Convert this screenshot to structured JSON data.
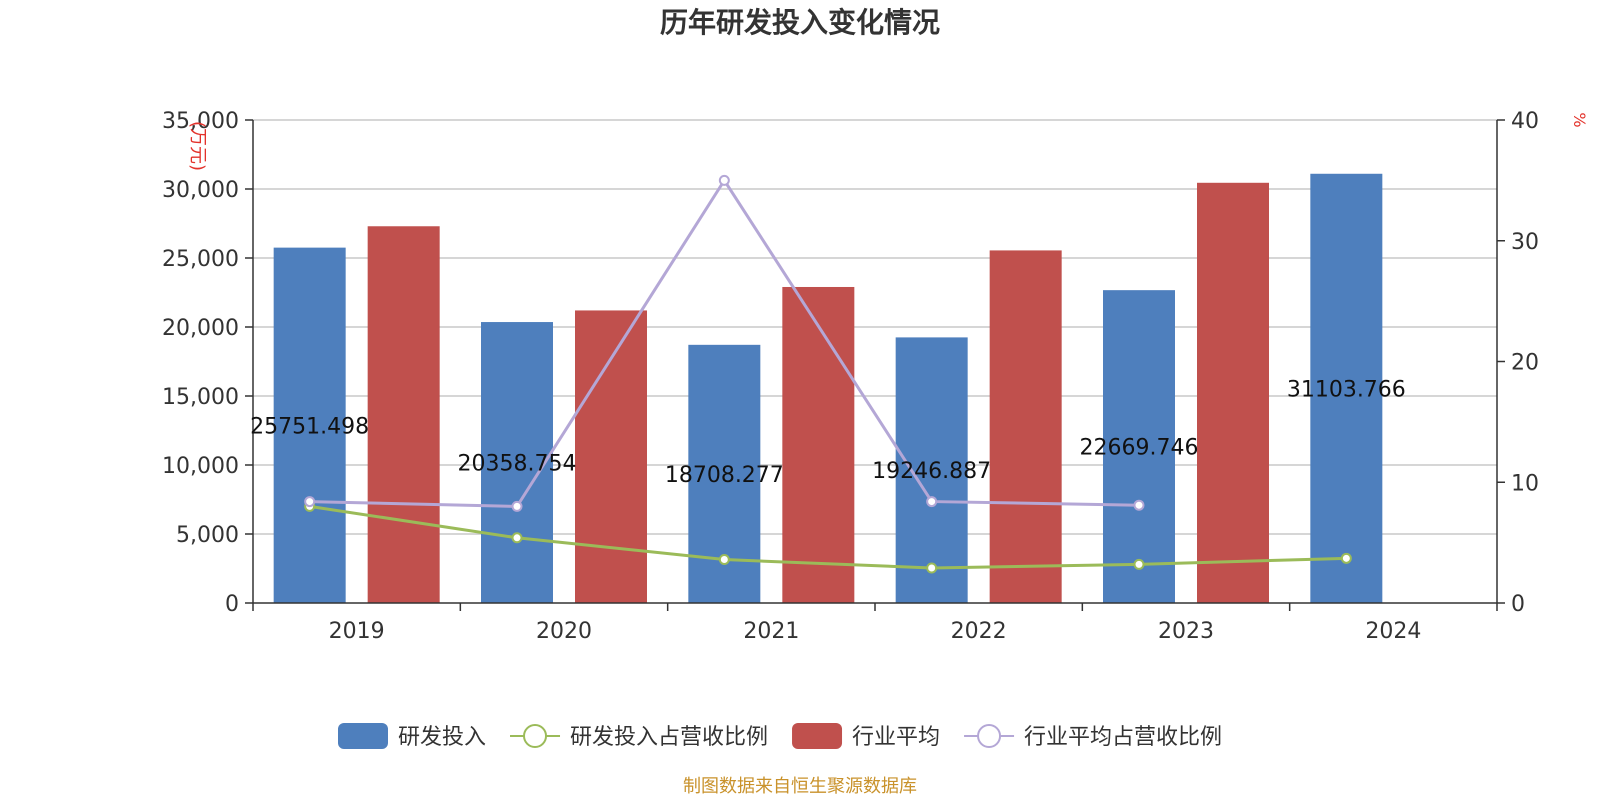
{
  "chart_data": {
    "title": "历年研发投入变化情况",
    "type": "bar+line",
    "categories": [
      "2019",
      "2020",
      "2021",
      "2022",
      "2023",
      "2024"
    ],
    "y_left": {
      "unit": "(万元)",
      "ticks": [
        "0",
        "5,000",
        "10,000",
        "15,000",
        "20,000",
        "25,000",
        "30,000",
        "35,000"
      ],
      "ylim": [
        0,
        35000
      ]
    },
    "y_right": {
      "unit": "%",
      "ticks": [
        "0",
        "10",
        "20",
        "30",
        "40"
      ],
      "ylim": [
        0,
        40
      ]
    },
    "series": [
      {
        "name": "研发投入",
        "type": "bar",
        "axis": "left",
        "color": "#4e7fbd",
        "values": [
          25751.498,
          20358.754,
          18708.277,
          19246.887,
          22669.746,
          31103.766
        ],
        "labels": [
          "25751.498",
          "20358.754",
          "18708.277",
          "19246.887",
          "22669.746",
          "31103.766"
        ]
      },
      {
        "name": "研发投入占营收比例",
        "type": "line",
        "axis": "right",
        "color": "#9bbb59",
        "values": [
          8.0,
          5.4,
          3.6,
          2.9,
          3.2,
          3.7
        ]
      },
      {
        "name": "行业平均",
        "type": "bar",
        "axis": "left",
        "color": "#c0504d",
        "values": [
          27300,
          21200,
          22900,
          25550,
          30450,
          null
        ]
      },
      {
        "name": "行业平均占营收比例",
        "type": "line",
        "axis": "right",
        "color": "#b4a7d6",
        "values": [
          8.4,
          8.0,
          35.0,
          8.4,
          8.1,
          null
        ]
      }
    ],
    "grid": true,
    "legend_position": "bottom"
  },
  "source_text": "制图数据来自恒生聚源数据库"
}
